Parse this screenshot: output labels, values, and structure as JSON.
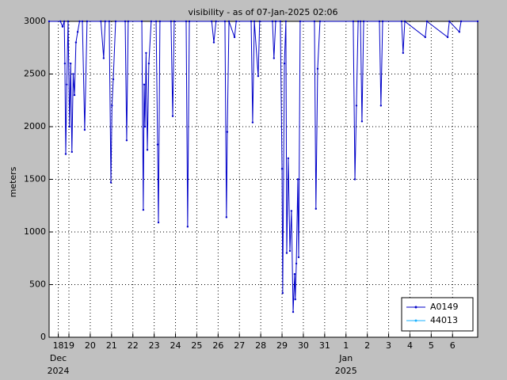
{
  "chart_data": {
    "type": "line",
    "title": "visibility - as of 07-Jan-2025 02:06",
    "y_label": "meters",
    "xlim": [
      0.07,
      20.18
    ],
    "ylim": [
      0,
      3000
    ],
    "yticks": [
      0,
      500,
      1000,
      1500,
      2000,
      2500,
      3000
    ],
    "xticks": [
      {
        "value": 0.5,
        "label": "18"
      },
      {
        "value": 1,
        "label": "19"
      },
      {
        "value": 2,
        "label": "20"
      },
      {
        "value": 3,
        "label": "21"
      },
      {
        "value": 4,
        "label": "22"
      },
      {
        "value": 5,
        "label": "23"
      },
      {
        "value": 6,
        "label": "24"
      },
      {
        "value": 7,
        "label": "25"
      },
      {
        "value": 8,
        "label": "26"
      },
      {
        "value": 9,
        "label": "27"
      },
      {
        "value": 10,
        "label": "28"
      },
      {
        "value": 11,
        "label": "29"
      },
      {
        "value": 12,
        "label": "30"
      },
      {
        "value": 13,
        "label": "31"
      },
      {
        "value": 14,
        "label": "1"
      },
      {
        "value": 15,
        "label": "2"
      },
      {
        "value": 16,
        "label": "3"
      },
      {
        "value": 17,
        "label": "4"
      },
      {
        "value": 18,
        "label": "5"
      },
      {
        "value": 19,
        "label": "6"
      }
    ],
    "month_labels": [
      {
        "at": 0.5,
        "month": "Dec",
        "year": "2024"
      },
      {
        "at": 14,
        "month": "Jan",
        "year": "2025"
      }
    ],
    "grid": true,
    "legend": "lower right",
    "series": [
      {
        "name": "A0149",
        "color": "#0000c8",
        "x": [
          0.07,
          0.6,
          0.7,
          0.78,
          0.81,
          0.85,
          0.9,
          0.96,
          1.03,
          1.08,
          1.14,
          1.2,
          1.26,
          1.33,
          1.41,
          1.5,
          1.63,
          1.74,
          1.85,
          2.5,
          2.63,
          2.7,
          2.89,
          2.97,
          3.02,
          3.08,
          3.19,
          3.64,
          3.71,
          3.78,
          4.42,
          4.49,
          4.53,
          4.57,
          4.62,
          4.68,
          4.75,
          4.86,
          5.09,
          5.16,
          5.2,
          5.27,
          5.79,
          5.87,
          5.94,
          6.5,
          6.57,
          6.65,
          7.7,
          7.8,
          7.9,
          8.32,
          8.39,
          8.43,
          8.51,
          8.77,
          8.85,
          9.55,
          9.62,
          9.7,
          9.88,
          9.95,
          10.55,
          10.62,
          10.7,
          10.92,
          11.0,
          11.03,
          11.11,
          11.18,
          11.22,
          11.29,
          11.37,
          11.44,
          11.52,
          11.59,
          11.62,
          11.67,
          11.74,
          11.78,
          11.85,
          12.52,
          12.59,
          12.67,
          12.78,
          14.34,
          14.42,
          14.49,
          14.57,
          14.68,
          14.75,
          14.83,
          15.57,
          15.64,
          15.72,
          16.61,
          16.68,
          16.76,
          17.72,
          17.8,
          18.77,
          18.85,
          19.32,
          19.4,
          20.18
        ],
        "values": [
          3000,
          3000,
          2950,
          3000,
          2600,
          1740,
          2400,
          3000,
          2000,
          2600,
          1760,
          2500,
          2300,
          2800,
          2900,
          3000,
          3000,
          1970,
          3000,
          3000,
          2650,
          3000,
          3000,
          1470,
          2200,
          2450,
          3000,
          3000,
          1870,
          3000,
          3000,
          1210,
          2400,
          2000,
          2700,
          1780,
          2600,
          3000,
          3000,
          1830,
          1090,
          3000,
          3000,
          2100,
          3000,
          3000,
          1050,
          3000,
          3000,
          2800,
          3000,
          3000,
          1140,
          1950,
          3000,
          2850,
          3000,
          3000,
          2040,
          3000,
          2480,
          3000,
          3000,
          2650,
          3000,
          3000,
          1600,
          420,
          2600,
          3000,
          800,
          1700,
          820,
          1200,
          240,
          600,
          360,
          700,
          1500,
          760,
          3000,
          3000,
          1220,
          2550,
          3000,
          3000,
          1500,
          2200,
          3000,
          3000,
          2050,
          3000,
          3000,
          2200,
          3000,
          3000,
          2700,
          3000,
          2850,
          3000,
          2850,
          3000,
          2900,
          3000,
          3000
        ]
      },
      {
        "name": "44013",
        "color": "#1ab2ff",
        "x": [],
        "values": []
      }
    ]
  }
}
